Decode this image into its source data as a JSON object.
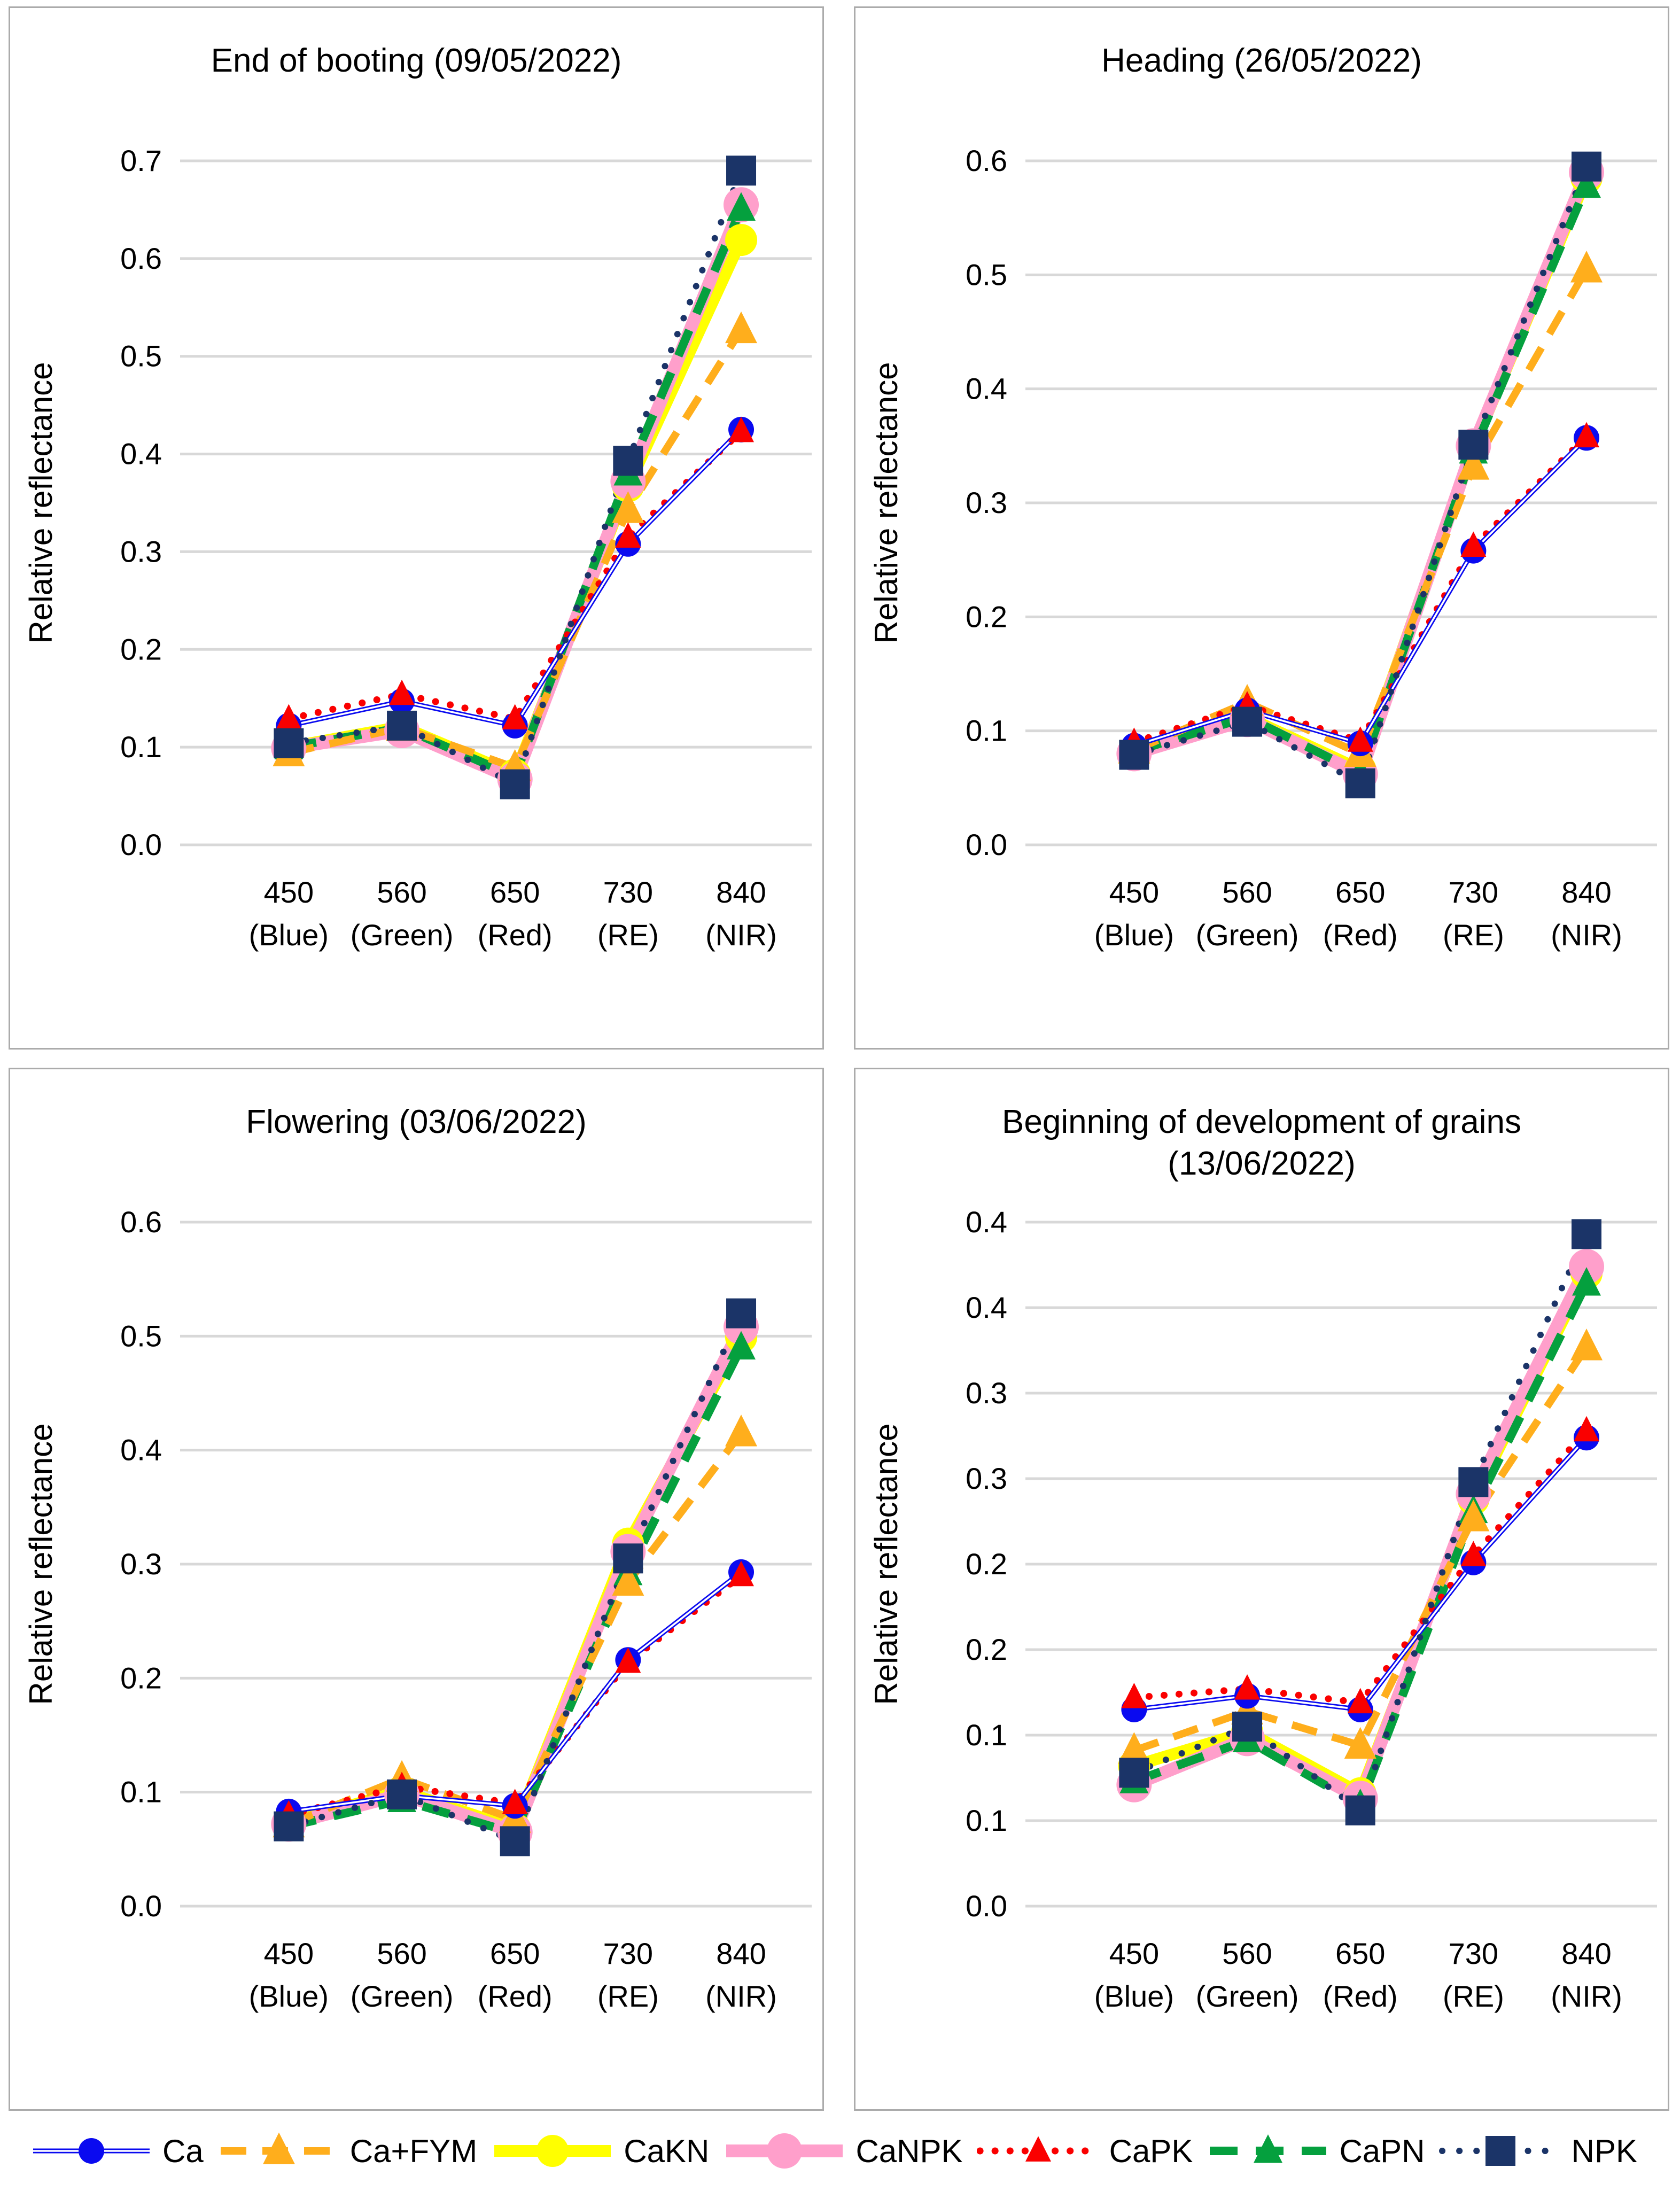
{
  "legend": {
    "items": [
      {
        "label": "Ca",
        "color": "#0a0af0",
        "line": "double",
        "line_width": 9,
        "dash": "",
        "marker": "circle",
        "marker_size": 24
      },
      {
        "label": "Ca+FYM",
        "color": "#ffae1c",
        "line": "dash",
        "line_width": 14,
        "dash": "48 30",
        "marker": "triangle",
        "marker_size": 30
      },
      {
        "label": "CaKN",
        "color": "#ffff00",
        "line": "solid",
        "line_width": 22,
        "dash": "",
        "marker": "circle",
        "marker_size": 30
      },
      {
        "label": "CaNPK",
        "color": "#ff9fcb",
        "line": "solid",
        "line_width": 24,
        "dash": "",
        "marker": "circle",
        "marker_size": 33
      },
      {
        "label": "CaPK",
        "color": "#fa0000",
        "line": "dot",
        "line_width": 13,
        "dash": "0.1 28",
        "marker": "triangle",
        "marker_size": 24
      },
      {
        "label": "CaPN",
        "color": "#05a03e",
        "line": "dash",
        "line_width": 16,
        "dash": "52 34",
        "marker": "triangle",
        "marker_size": 27
      },
      {
        "label": "NPK",
        "color": "#1b3468",
        "line": "dot",
        "line_width": 12,
        "dash": "0.1 32",
        "marker": "square",
        "marker_size": 56
      }
    ]
  },
  "axes": {
    "ylabel": "Relative reflectance",
    "categories": [
      "450",
      "560",
      "650",
      "730",
      "840"
    ],
    "category_sublabels": [
      "(Blue)",
      "(Green)",
      "(Red)",
      "(RE)",
      "(NIR)"
    ]
  },
  "chart_data": [
    {
      "type": "line",
      "title": "End of booting (09/05/2022)",
      "xlabel": "",
      "ylabel": "Relative reflectance",
      "categories": [
        "450 (Blue)",
        "560 (Green)",
        "650 (Red)",
        "730 (RE)",
        "840 (NIR)"
      ],
      "ylim": [
        0.0,
        0.7
      ],
      "ytick_step": 0.1,
      "grid": true,
      "legend_position": "bottom-shared",
      "ytick_labels": [
        "0.7",
        "0.6",
        "0.5",
        "0.4",
        "0.3",
        "0.2",
        "0.1",
        "0.0"
      ],
      "series": [
        {
          "name": "Ca",
          "values": [
            0.122,
            0.147,
            0.122,
            0.308,
            0.425
          ]
        },
        {
          "name": "Ca+FYM",
          "values": [
            0.094,
            0.12,
            0.079,
            0.343,
            0.527
          ]
        },
        {
          "name": "CaKN",
          "values": [
            0.1,
            0.121,
            0.072,
            0.367,
            0.619
          ]
        },
        {
          "name": "CaNPK",
          "values": [
            0.099,
            0.117,
            0.067,
            0.372,
            0.655
          ]
        },
        {
          "name": "CaPK",
          "values": [
            0.129,
            0.154,
            0.129,
            0.315,
            0.423
          ]
        },
        {
          "name": "CaPN",
          "values": [
            0.1,
            0.12,
            0.07,
            0.38,
            0.651
          ]
        },
        {
          "name": "NPK",
          "values": [
            0.104,
            0.122,
            0.062,
            0.393,
            0.69
          ]
        }
      ]
    },
    {
      "type": "line",
      "title": "Heading (26/05/2022)",
      "xlabel": "",
      "ylabel": "Relative reflectance",
      "categories": [
        "450 (Blue)",
        "560 (Green)",
        "650 (Red)",
        "730 (RE)",
        "840 (NIR)"
      ],
      "ylim": [
        0.0,
        0.6
      ],
      "ytick_step": 0.1,
      "grid": true,
      "legend_position": "bottom-shared",
      "ytick_labels": [
        "0.6",
        "0.5",
        "0.4",
        "0.3",
        "0.2",
        "0.1",
        "0.0"
      ],
      "series": [
        {
          "name": "Ca",
          "values": [
            0.087,
            0.118,
            0.089,
            0.258,
            0.357
          ]
        },
        {
          "name": "Ca+FYM",
          "values": [
            0.083,
            0.125,
            0.08,
            0.332,
            0.505
          ]
        },
        {
          "name": "CaKN",
          "values": [
            0.082,
            0.112,
            0.066,
            0.349,
            0.585
          ]
        },
        {
          "name": "CaNPK",
          "values": [
            0.08,
            0.11,
            0.062,
            0.35,
            0.59
          ]
        },
        {
          "name": "CaPK",
          "values": [
            0.09,
            0.122,
            0.091,
            0.262,
            0.358
          ]
        },
        {
          "name": "CaPN",
          "values": [
            0.082,
            0.112,
            0.063,
            0.345,
            0.578
          ]
        },
        {
          "name": "NPK",
          "values": [
            0.079,
            0.108,
            0.054,
            0.351,
            0.595
          ]
        }
      ]
    },
    {
      "type": "line",
      "title": "Flowering (03/06/2022)",
      "xlabel": "",
      "ylabel": "Relative reflectance",
      "categories": [
        "450 (Blue)",
        "560 (Green)",
        "650 (Red)",
        "730 (RE)",
        "840 (NIR)"
      ],
      "ylim": [
        0.0,
        0.6
      ],
      "ytick_step": 0.1,
      "grid": true,
      "legend_position": "bottom-shared",
      "ytick_labels": [
        "0.6",
        "0.5",
        "0.4",
        "0.3",
        "0.2",
        "0.1",
        "0.0"
      ],
      "series": [
        {
          "name": "Ca",
          "values": [
            0.083,
            0.097,
            0.088,
            0.216,
            0.293
          ]
        },
        {
          "name": "Ca+FYM",
          "values": [
            0.072,
            0.112,
            0.076,
            0.284,
            0.415
          ]
        },
        {
          "name": "CaKN",
          "values": [
            0.073,
            0.101,
            0.068,
            0.318,
            0.499
          ]
        },
        {
          "name": "CaNPK",
          "values": [
            0.072,
            0.098,
            0.065,
            0.311,
            0.508
          ]
        },
        {
          "name": "CaPK",
          "values": [
            0.08,
            0.105,
            0.09,
            0.214,
            0.29
          ]
        },
        {
          "name": "CaPN",
          "values": [
            0.07,
            0.093,
            0.064,
            0.292,
            0.49
          ]
        },
        {
          "name": "NPK",
          "values": [
            0.07,
            0.098,
            0.057,
            0.305,
            0.52
          ]
        }
      ]
    },
    {
      "type": "line",
      "title": "Beginning of development of grains (13/06/2022)",
      "xlabel": "",
      "ylabel": "Relative reflectance",
      "categories": [
        "450 (Blue)",
        "560 (Green)",
        "650 (Red)",
        "730 (RE)",
        "840 (NIR)"
      ],
      "ylim": [
        0.0,
        0.4
      ],
      "ytick_step": 0.05,
      "grid": true,
      "legend_position": "bottom-shared",
      "ytick_labels": [
        "0.4",
        "0.4",
        "0.3",
        "0.3",
        "0.2",
        "0.2",
        "0.1",
        "0.1",
        "0.0"
      ],
      "series": [
        {
          "name": "Ca",
          "values": [
            0.115,
            0.123,
            0.115,
            0.201,
            0.274
          ]
        },
        {
          "name": "Ca+FYM",
          "values": [
            0.091,
            0.114,
            0.094,
            0.227,
            0.327
          ]
        },
        {
          "name": "CaKN",
          "values": [
            0.082,
            0.102,
            0.066,
            0.238,
            0.37
          ]
        },
        {
          "name": "CaNPK",
          "values": [
            0.071,
            0.098,
            0.063,
            0.241,
            0.374
          ]
        },
        {
          "name": "CaPK",
          "values": [
            0.122,
            0.127,
            0.119,
            0.205,
            0.278
          ]
        },
        {
          "name": "CaPN",
          "values": [
            0.073,
            0.097,
            0.059,
            0.231,
            0.364
          ]
        },
        {
          "name": "NPK",
          "values": [
            0.078,
            0.105,
            0.056,
            0.248,
            0.393
          ]
        }
      ]
    }
  ]
}
